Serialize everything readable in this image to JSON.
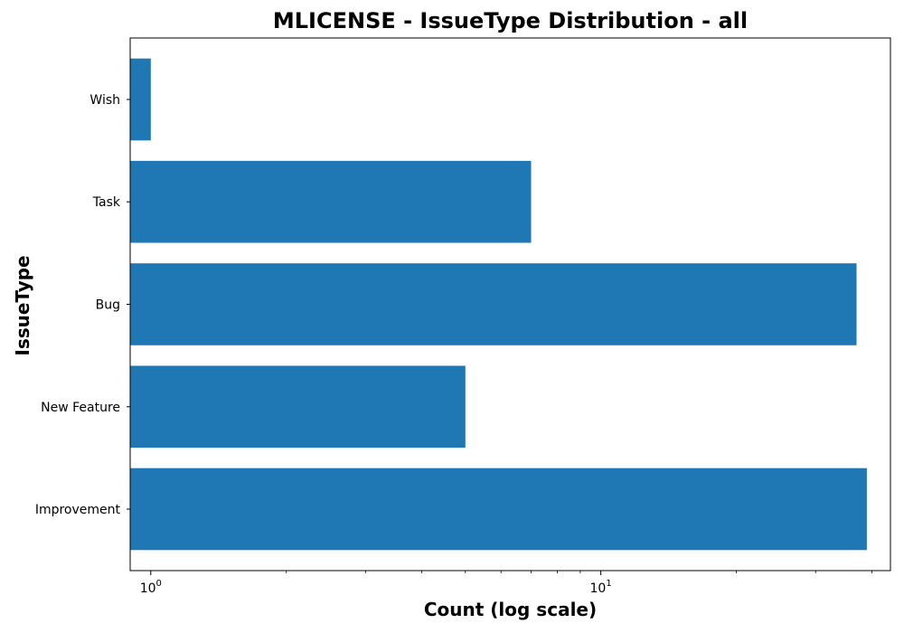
{
  "chart_data": {
    "type": "bar",
    "orientation": "horizontal",
    "title": "MLICENSE - IssueType Distribution - all",
    "xlabel": "Count (log scale)",
    "ylabel": "IssueType",
    "x_scale": "log",
    "xlim": [
      0.9,
      44
    ],
    "categories": [
      "Improvement",
      "New Feature",
      "Bug",
      "Task",
      "Wish"
    ],
    "values": [
      39,
      5,
      37,
      7,
      1
    ],
    "x_ticks": [
      {
        "value": 1,
        "base": "10",
        "exp": "0"
      },
      {
        "value": 10,
        "base": "10",
        "exp": "1"
      }
    ],
    "bar_color": "#1f77b4",
    "grid": false,
    "legend": "none"
  }
}
